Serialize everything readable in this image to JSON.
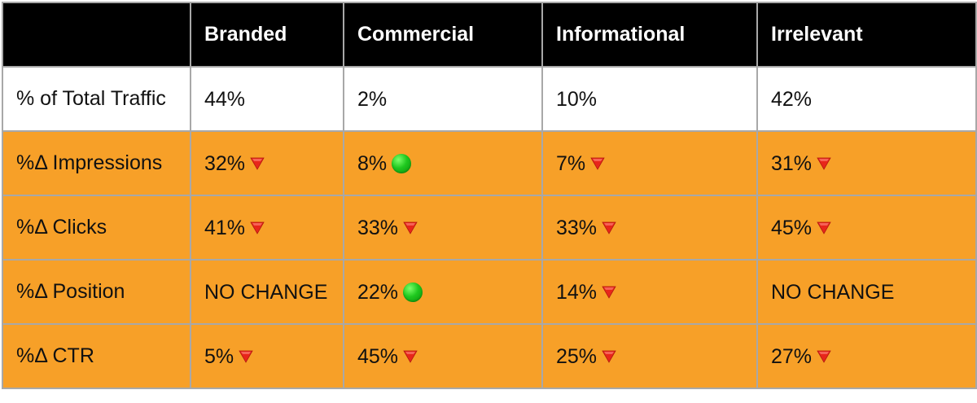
{
  "chart_data": {
    "type": "table",
    "columns": [
      "",
      "Branded",
      "Commercial",
      "Informational",
      "Irrelevant"
    ],
    "rows": [
      {
        "label": "% of Total Traffic",
        "cells": [
          {
            "text": "44%",
            "indicator": "none"
          },
          {
            "text": "2%",
            "indicator": "none"
          },
          {
            "text": "10%",
            "indicator": "none"
          },
          {
            "text": "42%",
            "indicator": "none"
          }
        ]
      },
      {
        "label": "%Δ Impressions",
        "cells": [
          {
            "text": "32%",
            "indicator": "down"
          },
          {
            "text": "8%",
            "indicator": "up"
          },
          {
            "text": "7%",
            "indicator": "down"
          },
          {
            "text": "31%",
            "indicator": "down"
          }
        ]
      },
      {
        "label": "%Δ Clicks",
        "cells": [
          {
            "text": "41%",
            "indicator": "down"
          },
          {
            "text": "33%",
            "indicator": "down"
          },
          {
            "text": "33%",
            "indicator": "down"
          },
          {
            "text": "45%",
            "indicator": "down"
          }
        ]
      },
      {
        "label": "%Δ Position",
        "cells": [
          {
            "text": "NO CHANGE",
            "indicator": "none"
          },
          {
            "text": "22%",
            "indicator": "up"
          },
          {
            "text": "14%",
            "indicator": "down"
          },
          {
            "text": "NO CHANGE",
            "indicator": "none"
          }
        ]
      },
      {
        "label": "%Δ CTR",
        "cells": [
          {
            "text": "5%",
            "indicator": "down"
          },
          {
            "text": "45%",
            "indicator": "down"
          },
          {
            "text": "25%",
            "indicator": "down"
          },
          {
            "text": "27%",
            "indicator": "down"
          }
        ]
      }
    ],
    "indicator_icons": {
      "down": "red-down-triangle-icon",
      "up": "green-circle-icon"
    },
    "colors": {
      "header_bg": "#000000",
      "header_text": "#ffffff",
      "first_row_bg": "#ffffff",
      "data_row_bg": "#f7a028",
      "grid": "#a8a8a8",
      "down_indicator": "#e8261b",
      "up_indicator": "#1fc81f"
    }
  }
}
